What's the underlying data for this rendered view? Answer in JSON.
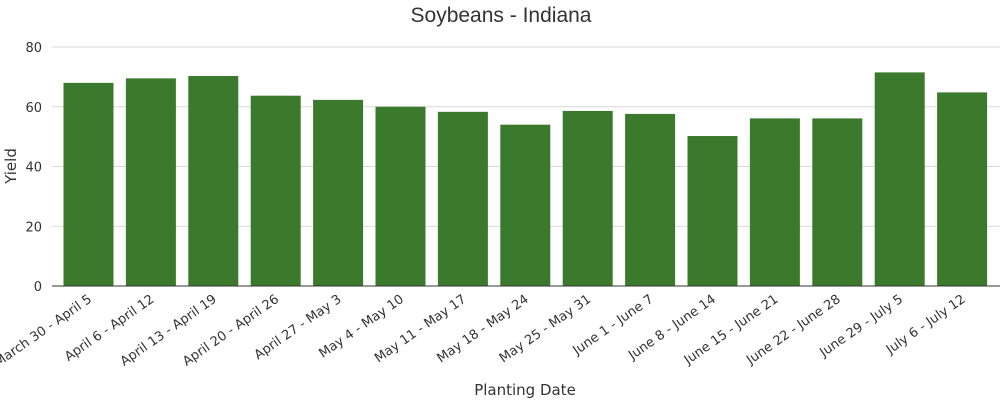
{
  "chart_data": {
    "type": "bar",
    "title": "Soybeans - Indiana",
    "xlabel": "Planting Date",
    "ylabel": "Yield",
    "ylim": [
      0,
      80
    ],
    "yticks": [
      0,
      20,
      40,
      60,
      80
    ],
    "grid": true,
    "bar_color": "#3b7a2c",
    "categories": [
      "March 30 - April 5",
      "April 6 - April 12",
      "April 13 - April 19",
      "April 20 - April 26",
      "April 27 - May 3",
      "May 4 - May 10",
      "May 11 - May 17",
      "May 18 - May 24",
      "May 25 - May 31",
      "June 1 - June 7",
      "June 8 - June 14",
      "June 15 - June 21",
      "June 22 - June 28",
      "June 29 - July 5",
      "July 6 - July 12"
    ],
    "values": [
      68,
      69.5,
      70.3,
      63.7,
      62.3,
      60,
      58.3,
      54,
      58.6,
      57.6,
      50.2,
      56.1,
      56.1,
      71.5,
      64.8
    ]
  }
}
